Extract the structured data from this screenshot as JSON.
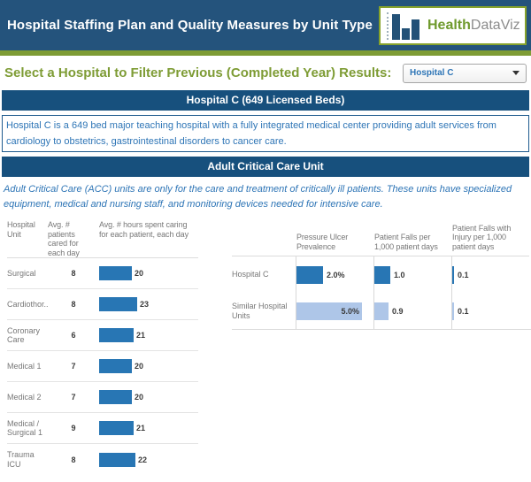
{
  "header": {
    "title": "Hospital Staffing Plan and Quality Measures by Unit Type",
    "logo": {
      "word1": "Health",
      "word2": "DataViz",
      "icon": "bar-chart-logo"
    }
  },
  "filter": {
    "prompt": "Select a Hospital to Filter Previous (Completed Year) Results:",
    "dropdown_value": "Hospital C"
  },
  "hospital_banner": "Hospital C (649 Licensed Beds)",
  "hospital_description": "Hospital C is a 649 bed major teaching hospital with a  fully integrated medical center providing adult services from cardiology to obstetrics, gastrointestinal disorders to cancer care.",
  "unit_banner": "Adult Critical Care Unit",
  "unit_description": "Adult Critical Care (ACC) units are only for the care and treatment of critically ill patients. These units have specialized equipment, medical and nursing staff, and monitoring devices needed for intensive care.",
  "colors": {
    "header_bg": "#24537C",
    "banner_bg": "#17507D",
    "accent_green": "#7E9C35",
    "bar_dark": "#2876B4",
    "bar_light": "#AEC6E8",
    "text_blue": "#2E75B6"
  },
  "chart_data": [
    {
      "type": "bar",
      "row_header": "Hospital Unit",
      "categories": [
        "Surgical",
        "Cardiothor..",
        "Coronary Care",
        "Medical 1",
        "Medical 2",
        "Medical / Surgical 1",
        "Trauma ICU"
      ],
      "series": [
        {
          "name": "Avg. # patients cared for each day",
          "values": [
            8,
            8,
            6,
            7,
            7,
            9,
            8
          ]
        },
        {
          "name": "Avg. # hours spent caring for each patient, each day",
          "values": [
            20,
            23,
            21,
            20,
            20,
            21,
            22
          ]
        }
      ],
      "bar_color": "#2876B4",
      "legend": "none",
      "grid": "row-dividers"
    },
    {
      "type": "bar",
      "categories": [
        "Hospital C",
        "Similar Hospital Units"
      ],
      "series": [
        {
          "name": "Pressure Ulcer Prevalence",
          "values": [
            2.0,
            5.0
          ],
          "labels": [
            "2.0%",
            "5.0%"
          ]
        },
        {
          "name": "Patient Falls per 1,000 patient days",
          "values": [
            1.0,
            0.9
          ],
          "labels": [
            "1.0",
            "0.9"
          ]
        },
        {
          "name": "Patient Falls with Injury per 1,000 patient days",
          "values": [
            0.1,
            0.1
          ],
          "labels": [
            "0.1",
            "0.1"
          ]
        }
      ],
      "category_colors": [
        "#2876B4",
        "#AEC6E8"
      ],
      "legend": "none",
      "grid": "column-axes"
    }
  ]
}
